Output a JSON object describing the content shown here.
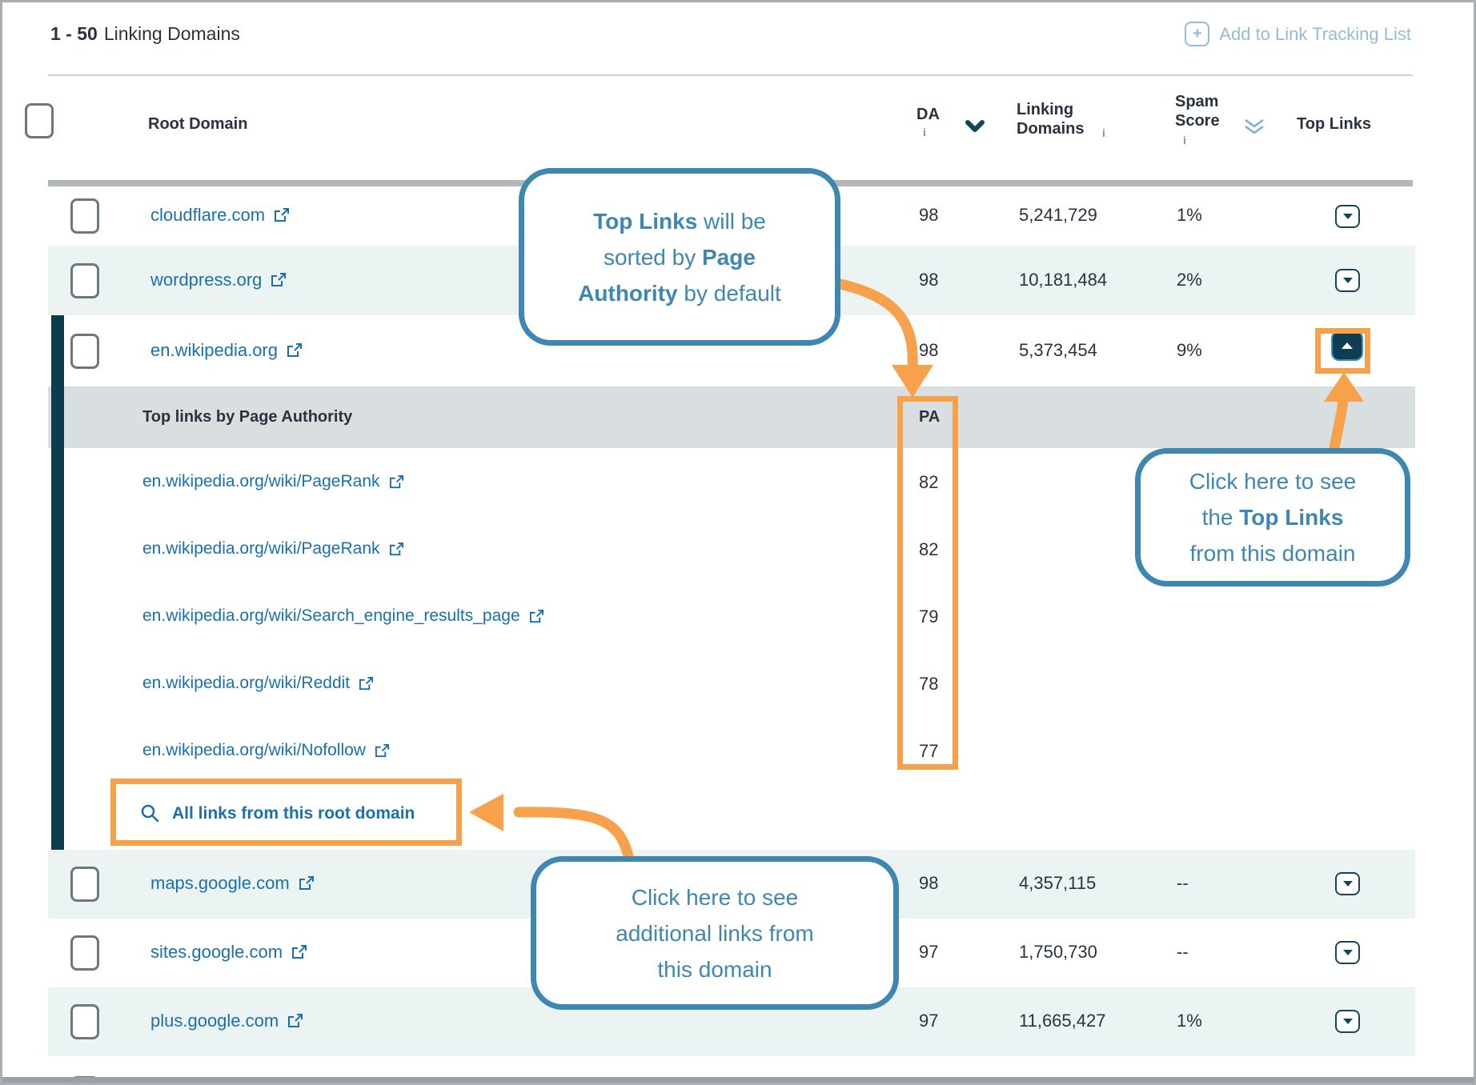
{
  "header": {
    "range": "1 - 50",
    "title": "Linking Domains",
    "add_button_label": "Add to Link Tracking List",
    "add_icon": "+"
  },
  "table": {
    "columns": {
      "root_domain": "Root Domain",
      "da": "DA",
      "linking_domains_line1": "Linking",
      "linking_domains_line2": "Domains",
      "spam_score_line1": "Spam",
      "spam_score_line2": "Score",
      "top_links": "Top Links",
      "info_icon": "i"
    },
    "rows": [
      {
        "domain": "cloudflare.com",
        "da": "98",
        "linking_domains": "5,241,729",
        "spam_score": "1%"
      },
      {
        "domain": "wordpress.org",
        "da": "98",
        "linking_domains": "10,181,484",
        "spam_score": "2%"
      },
      {
        "domain": "en.wikipedia.org",
        "da": "98",
        "linking_domains": "5,373,454",
        "spam_score": "9%"
      },
      {
        "domain": "maps.google.com",
        "da": "98",
        "linking_domains": "4,357,115",
        "spam_score": "--"
      },
      {
        "domain": "sites.google.com",
        "da": "97",
        "linking_domains": "1,750,730",
        "spam_score": "--"
      },
      {
        "domain": "plus.google.com",
        "da": "97",
        "linking_domains": "11,665,427",
        "spam_score": "1%"
      }
    ],
    "expanded": {
      "header": "Top links by Page Authority",
      "pa_label": "PA",
      "links": [
        {
          "url": "en.wikipedia.org/wiki/PageRank",
          "pa": "82"
        },
        {
          "url": "en.wikipedia.org/wiki/PageRank",
          "pa": "82"
        },
        {
          "url": "en.wikipedia.org/wiki/Search_engine_results_page",
          "pa": "79"
        },
        {
          "url": "en.wikipedia.org/wiki/Reddit",
          "pa": "78"
        },
        {
          "url": "en.wikipedia.org/wiki/Nofollow",
          "pa": "77"
        }
      ],
      "all_links_label": "All links from this root domain"
    }
  },
  "callouts": {
    "top_links_sort": {
      "lines": [
        [
          {
            "t": "Top Links",
            "b": true
          },
          {
            "t": " will be",
            "b": false
          }
        ],
        [
          {
            "t": "sorted by ",
            "b": false
          },
          {
            "t": "Page",
            "b": true
          }
        ],
        [
          {
            "t": "Authority",
            "b": true
          },
          {
            "t": " by default",
            "b": false
          }
        ]
      ]
    },
    "top_links_button": {
      "lines": [
        [
          {
            "t": "Click here to see",
            "b": false
          }
        ],
        [
          {
            "t": "the ",
            "b": false
          },
          {
            "t": "Top Links",
            "b": true
          }
        ],
        [
          {
            "t": "from this domain",
            "b": false
          }
        ]
      ]
    },
    "all_links": {
      "lines": [
        [
          {
            "t": "Click here to see",
            "b": false
          }
        ],
        [
          {
            "t": "additional links from",
            "b": false
          }
        ],
        [
          {
            "t": "this domain",
            "b": false
          }
        ]
      ]
    }
  },
  "colors": {
    "accent_orange": "#f7a14c",
    "callout_blue": "#3e87b0",
    "link_blue": "#1a70ad",
    "dark_teal": "#0e3c4f",
    "row_teal": "#ecf4f3",
    "subheader_grey": "#d9dee1"
  }
}
